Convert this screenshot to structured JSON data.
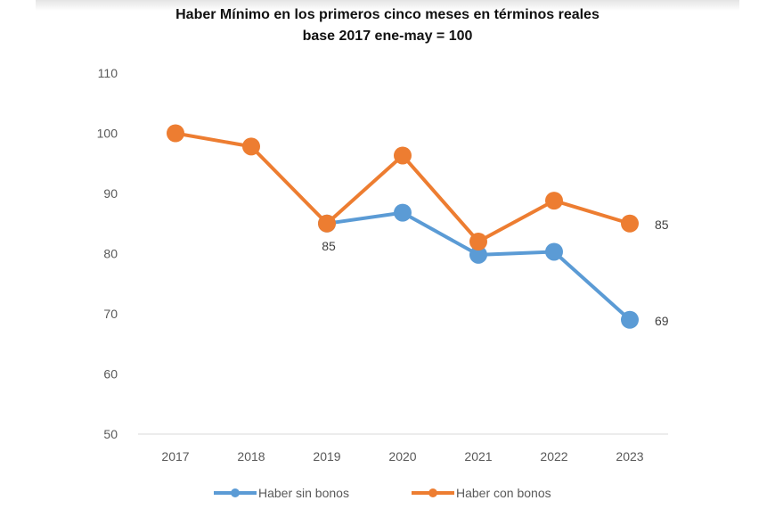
{
  "chart_data": {
    "type": "line",
    "title": "Haber Mínimo en los primeros cinco meses en términos reales",
    "subtitle": "base 2017 ene-may = 100",
    "xlabel": "",
    "ylabel": "",
    "categories": [
      "2017",
      "2018",
      "2019",
      "2020",
      "2021",
      "2022",
      "2023"
    ],
    "ylim": [
      50,
      110
    ],
    "yticks": [
      50,
      60,
      70,
      80,
      90,
      100,
      110
    ],
    "grid": false,
    "legend": "bottom",
    "series": [
      {
        "name": "Haber sin bonos",
        "color": "#5b9bd5",
        "values": [
          null,
          null,
          85,
          86.8,
          79.8,
          80.3,
          69
        ]
      },
      {
        "name": "Haber con bonos",
        "color": "#ed7d31",
        "values": [
          100,
          97.8,
          85,
          96.3,
          82,
          88.8,
          85
        ]
      }
    ],
    "annotations": [
      {
        "series": "Haber con bonos",
        "category": "2019",
        "text": "85"
      },
      {
        "series": "Haber con bonos",
        "category": "2023",
        "text": "85"
      },
      {
        "series": "Haber sin bonos",
        "category": "2023",
        "text": "69"
      }
    ]
  }
}
